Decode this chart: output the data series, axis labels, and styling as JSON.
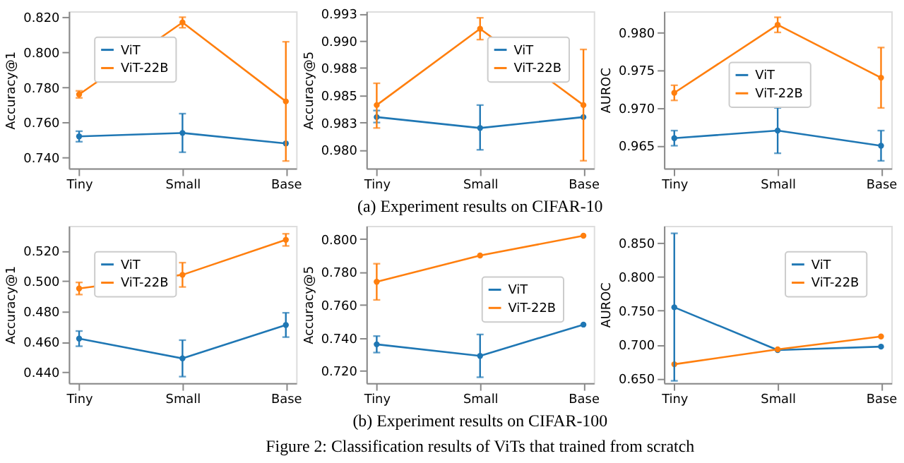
{
  "chart_data": [
    {
      "type": "line",
      "ylabel": "Accuracy@1",
      "categories": [
        "Tiny",
        "Small",
        "Base"
      ],
      "ylim": [
        0.7338,
        0.8234
      ],
      "yticks": [
        {
          "value": 0.74,
          "label": "0.740"
        },
        {
          "value": 0.76,
          "label": "0.760"
        },
        {
          "value": 0.78,
          "label": "0.780"
        },
        {
          "value": 0.8,
          "label": "0.800"
        },
        {
          "value": 0.82,
          "label": "0.820"
        }
      ],
      "legend": "top left",
      "marker": "circle",
      "series": [
        {
          "name": "ViT",
          "color": "#1f77b4",
          "values": [
            0.752,
            0.754,
            0.748
          ],
          "errors": [
            [
              0.749,
              0.755
            ],
            [
              0.743,
              0.765
            ],
            null
          ]
        },
        {
          "name": "ViT-22B",
          "color": "#ff7f0e",
          "values": [
            0.776,
            0.817,
            0.772
          ],
          "errors": [
            [
              0.774,
              0.778
            ],
            [
              0.814,
              0.82
            ],
            [
              0.738,
              0.806
            ]
          ]
        }
      ]
    },
    {
      "type": "line",
      "ylabel": "Accuracy@5",
      "categories": [
        "Tiny",
        "Small",
        "Base"
      ],
      "ylim": [
        0.9783,
        0.9927
      ],
      "yticks": [
        {
          "value": 0.98,
          "label": "0.980"
        },
        {
          "value": 0.9825,
          "label": "0.983"
        },
        {
          "value": 0.985,
          "label": "0.985"
        },
        {
          "value": 0.9875,
          "label": "0.988"
        },
        {
          "value": 0.99,
          "label": "0.990"
        },
        {
          "value": 0.9925,
          "label": "0.993"
        }
      ],
      "legend": "top right",
      "marker": "circle",
      "annotations": [
        "(a) Experiment results on CIFAR-10"
      ],
      "series": [
        {
          "name": "ViT",
          "color": "#1f77b4",
          "values": [
            0.983,
            0.982,
            0.983
          ],
          "errors": [
            [
              0.9825,
              0.9836
            ],
            [
              0.98,
              0.9841
            ],
            null
          ]
        },
        {
          "name": "ViT-22B",
          "color": "#ff7f0e",
          "values": [
            0.9841,
            0.9911,
            0.9841
          ],
          "errors": [
            [
              0.982,
              0.9861
            ],
            [
              0.9901,
              0.9921
            ],
            [
              0.979,
              0.9892
            ]
          ]
        }
      ]
    },
    {
      "type": "line",
      "ylabel": "AUROC",
      "categories": [
        "Tiny",
        "Small",
        "Base"
      ],
      "ylim": [
        0.962,
        0.9828
      ],
      "yticks": [
        {
          "value": 0.965,
          "label": "0.965"
        },
        {
          "value": 0.97,
          "label": "0.970"
        },
        {
          "value": 0.975,
          "label": "0.975"
        },
        {
          "value": 0.98,
          "label": "0.980"
        }
      ],
      "legend": "center",
      "marker": "circle",
      "series": [
        {
          "name": "ViT",
          "color": "#1f77b4",
          "values": [
            0.966,
            0.967,
            0.965
          ],
          "errors": [
            [
              0.965,
              0.967
            ],
            [
              0.964,
              0.97
            ],
            [
              0.963,
              0.967
            ]
          ]
        },
        {
          "name": "ViT-22B",
          "color": "#ff7f0e",
          "values": [
            0.972,
            0.981,
            0.974
          ],
          "errors": [
            [
              0.971,
              0.973
            ],
            [
              0.98,
              0.982
            ],
            [
              0.97,
              0.978
            ]
          ]
        }
      ]
    },
    {
      "type": "line",
      "ylabel": "Accuracy@1",
      "categories": [
        "Tiny",
        "Small",
        "Base"
      ],
      "ylim": [
        0.4328,
        0.5362
      ],
      "yticks": [
        {
          "value": 0.44,
          "label": "0.440"
        },
        {
          "value": 0.46,
          "label": "0.460"
        },
        {
          "value": 0.48,
          "label": "0.480"
        },
        {
          "value": 0.5,
          "label": "0.500"
        },
        {
          "value": 0.52,
          "label": "0.520"
        }
      ],
      "legend": "top left",
      "marker": "circle",
      "series": [
        {
          "name": "ViT",
          "color": "#1f77b4",
          "values": [
            0.462,
            0.449,
            0.471
          ],
          "errors": [
            [
              0.457,
              0.467
            ],
            [
              0.437,
              0.461
            ],
            [
              0.463,
              0.479
            ]
          ]
        },
        {
          "name": "ViT-22B",
          "color": "#ff7f0e",
          "values": [
            0.495,
            0.504,
            0.527
          ],
          "errors": [
            [
              0.491,
              0.499
            ],
            [
              0.496,
              0.512
            ],
            [
              0.523,
              0.531
            ]
          ]
        }
      ]
    },
    {
      "type": "line",
      "ylabel": "Accuracy@5",
      "categories": [
        "Tiny",
        "Small",
        "Base"
      ],
      "ylim": [
        0.7125,
        0.808
      ],
      "yticks": [
        {
          "value": 0.72,
          "label": "0.720"
        },
        {
          "value": 0.74,
          "label": "0.740"
        },
        {
          "value": 0.76,
          "label": "0.760"
        },
        {
          "value": 0.78,
          "label": "0.780"
        },
        {
          "value": 0.8,
          "label": "0.800"
        }
      ],
      "legend": "right",
      "marker": "circle",
      "annotations": [
        "(b) Experiment results on CIFAR-100",
        "Figure 2: Classification results of ViTs that trained from scratch"
      ],
      "series": [
        {
          "name": "ViT",
          "color": "#1f77b4",
          "values": [
            0.736,
            0.729,
            0.748
          ],
          "errors": [
            [
              0.731,
              0.741
            ],
            [
              0.716,
              0.742
            ],
            null
          ]
        },
        {
          "name": "ViT-22B",
          "color": "#ff7f0e",
          "values": [
            0.774,
            0.79,
            0.802
          ],
          "errors": [
            [
              0.763,
              0.785
            ],
            null,
            null
          ]
        }
      ]
    },
    {
      "type": "line",
      "ylabel": "AUROC",
      "categories": [
        "Tiny",
        "Small",
        "Base"
      ],
      "ylim": [
        0.6434,
        0.875
      ],
      "yticks": [
        {
          "value": 0.65,
          "label": "0.650"
        },
        {
          "value": 0.7,
          "label": "0.700"
        },
        {
          "value": 0.75,
          "label": "0.750"
        },
        {
          "value": 0.8,
          "label": "0.800"
        },
        {
          "value": 0.85,
          "label": "0.850"
        }
      ],
      "legend": "top right",
      "marker": "circle",
      "series": [
        {
          "name": "ViT",
          "color": "#1f77b4",
          "values": [
            0.755,
            0.692,
            0.697
          ],
          "errors": [
            [
              0.6466,
              0.864
            ],
            null,
            null
          ]
        },
        {
          "name": "ViT-22B",
          "color": "#ff7f0e",
          "values": [
            0.671,
            0.693,
            0.712
          ],
          "errors": [
            null,
            null,
            null
          ]
        }
      ]
    }
  ]
}
